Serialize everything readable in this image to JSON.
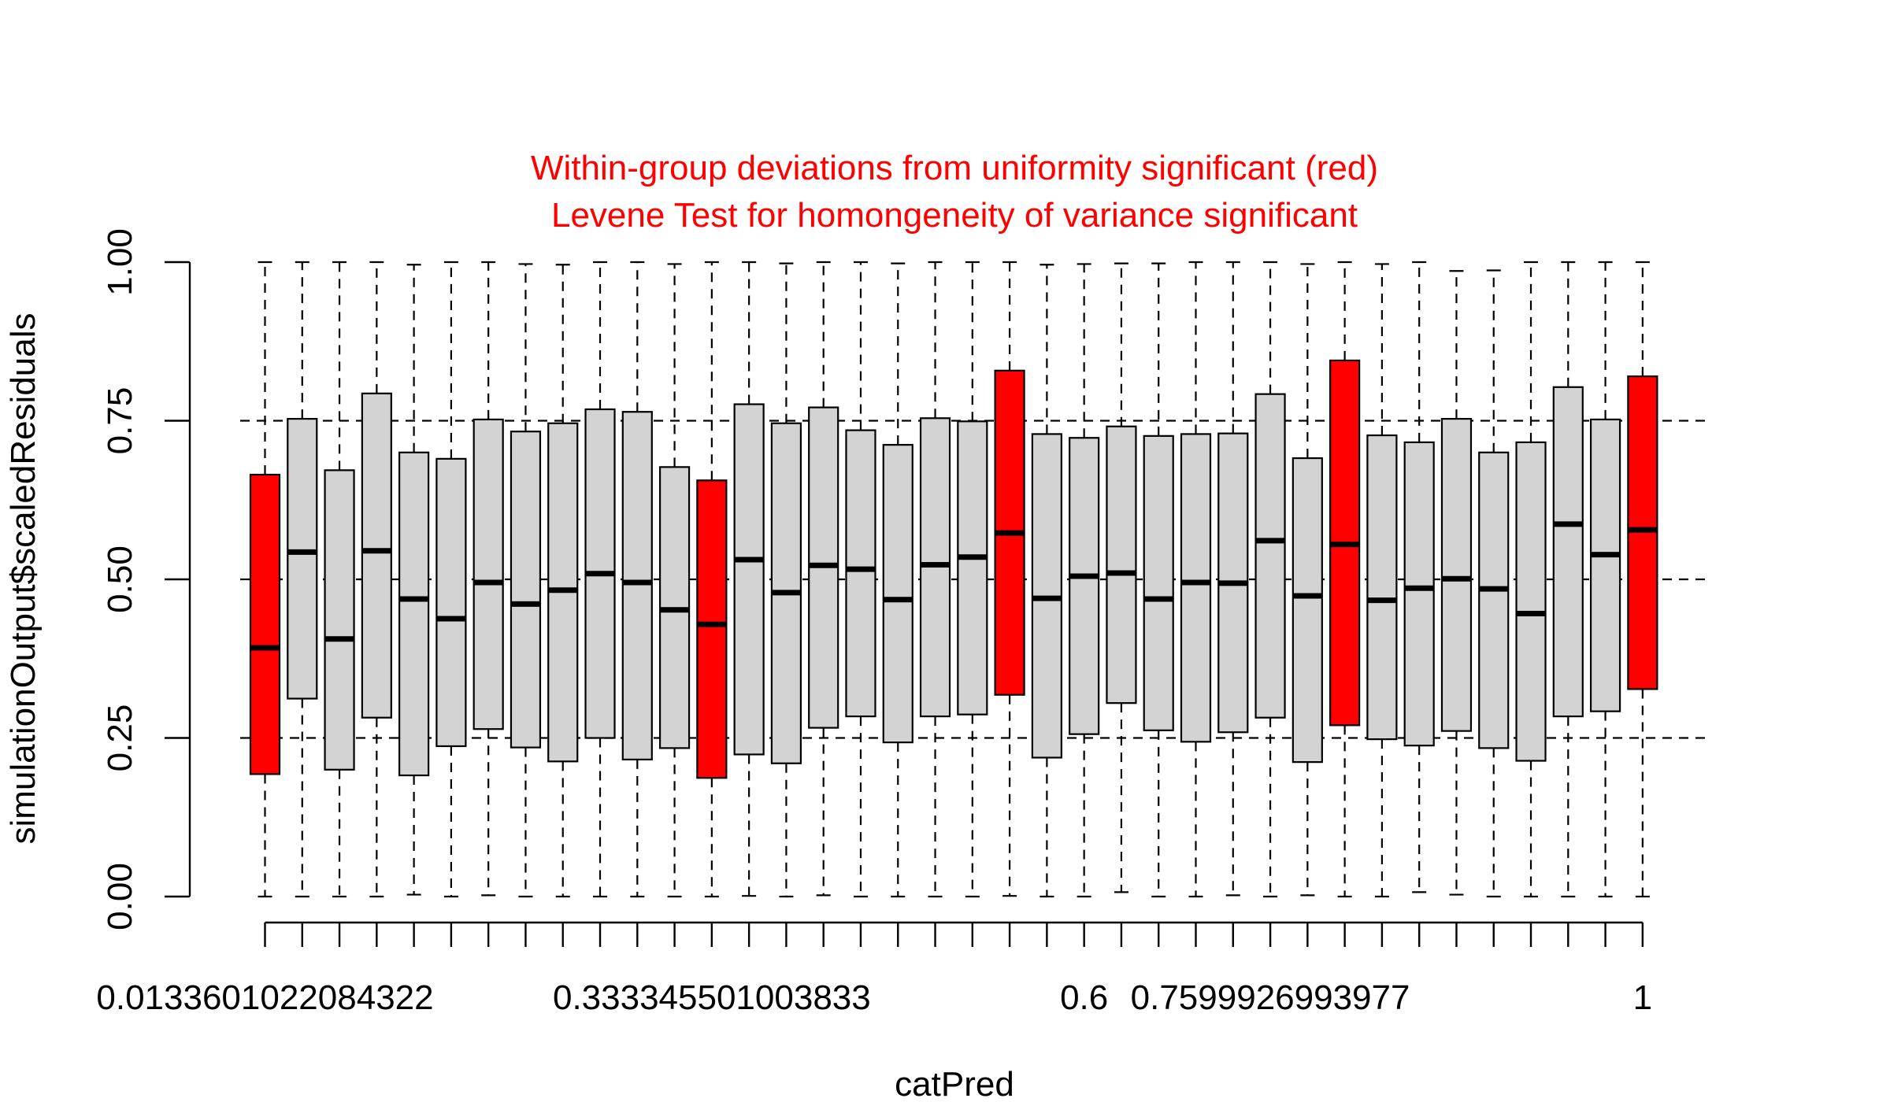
{
  "chart_data": {
    "type": "boxplot",
    "title": "Within-group deviations from uniformity significant (red)",
    "subtitle": "Levene Test for homongeneity of variance significant",
    "xlabel": "catPred",
    "ylabel": "simulationOutput$scaledResiduals",
    "ylim": [
      0,
      1
    ],
    "y_ticks": [
      "0.00",
      "0.25",
      "0.50",
      "0.75",
      "1.00"
    ],
    "x_tick_labels": [
      {
        "group": 1,
        "label": "0.0133601022084322"
      },
      {
        "group": 13,
        "label": "0.333345501003833"
      },
      {
        "group": 23,
        "label": "0.6"
      },
      {
        "group": 28,
        "label": "0.7599926993977"
      },
      {
        "group": 38,
        "label": "1"
      }
    ],
    "reference_lines": [
      0.25,
      0.5,
      0.75
    ],
    "colors": {
      "normal": "#d3d3d3",
      "significant": "#ff0000",
      "title": "#ff0000"
    },
    "groups": [
      {
        "q1": 0.193,
        "median": 0.392,
        "q3": 0.665,
        "min": 0.0,
        "max": 1.0,
        "significant": true
      },
      {
        "q1": 0.312,
        "median": 0.543,
        "q3": 0.753,
        "min": 0.0,
        "max": 1.0,
        "significant": false
      },
      {
        "q1": 0.2,
        "median": 0.406,
        "q3": 0.672,
        "min": 0.0,
        "max": 1.0,
        "significant": false
      },
      {
        "q1": 0.282,
        "median": 0.545,
        "q3": 0.793,
        "min": 0.0,
        "max": 1.0,
        "significant": false
      },
      {
        "q1": 0.191,
        "median": 0.469,
        "q3": 0.7,
        "min": 0.003,
        "max": 0.996,
        "significant": false
      },
      {
        "q1": 0.237,
        "median": 0.438,
        "q3": 0.69,
        "min": 0.0,
        "max": 1.0,
        "significant": false
      },
      {
        "q1": 0.264,
        "median": 0.495,
        "q3": 0.752,
        "min": 0.002,
        "max": 1.0,
        "significant": false
      },
      {
        "q1": 0.235,
        "median": 0.461,
        "q3": 0.733,
        "min": 0.0,
        "max": 0.997,
        "significant": false
      },
      {
        "q1": 0.213,
        "median": 0.483,
        "q3": 0.746,
        "min": 0.0,
        "max": 0.996,
        "significant": false
      },
      {
        "q1": 0.25,
        "median": 0.509,
        "q3": 0.768,
        "min": 0.0,
        "max": 1.0,
        "significant": false
      },
      {
        "q1": 0.216,
        "median": 0.495,
        "q3": 0.764,
        "min": 0.0,
        "max": 1.0,
        "significant": false
      },
      {
        "q1": 0.234,
        "median": 0.452,
        "q3": 0.677,
        "min": 0.0,
        "max": 0.997,
        "significant": false
      },
      {
        "q1": 0.187,
        "median": 0.429,
        "q3": 0.656,
        "min": 0.0,
        "max": 1.0,
        "significant": true
      },
      {
        "q1": 0.224,
        "median": 0.531,
        "q3": 0.776,
        "min": 0.001,
        "max": 1.0,
        "significant": false
      },
      {
        "q1": 0.21,
        "median": 0.479,
        "q3": 0.746,
        "min": 0.0,
        "max": 0.998,
        "significant": false
      },
      {
        "q1": 0.266,
        "median": 0.522,
        "q3": 0.771,
        "min": 0.002,
        "max": 1.0,
        "significant": false
      },
      {
        "q1": 0.284,
        "median": 0.516,
        "q3": 0.735,
        "min": 0.0,
        "max": 1.0,
        "significant": false
      },
      {
        "q1": 0.243,
        "median": 0.468,
        "q3": 0.712,
        "min": 0.0,
        "max": 0.998,
        "significant": false
      },
      {
        "q1": 0.284,
        "median": 0.523,
        "q3": 0.754,
        "min": 0.0,
        "max": 1.0,
        "significant": false
      },
      {
        "q1": 0.287,
        "median": 0.535,
        "q3": 0.749,
        "min": 0.0,
        "max": 1.0,
        "significant": false
      },
      {
        "q1": 0.318,
        "median": 0.573,
        "q3": 0.829,
        "min": 0.001,
        "max": 1.0,
        "significant": true
      },
      {
        "q1": 0.219,
        "median": 0.47,
        "q3": 0.729,
        "min": 0.0,
        "max": 0.996,
        "significant": false
      },
      {
        "q1": 0.256,
        "median": 0.505,
        "q3": 0.723,
        "min": 0.0,
        "max": 0.997,
        "significant": false
      },
      {
        "q1": 0.305,
        "median": 0.51,
        "q3": 0.741,
        "min": 0.007,
        "max": 0.998,
        "significant": false
      },
      {
        "q1": 0.262,
        "median": 0.469,
        "q3": 0.726,
        "min": 0.0,
        "max": 0.998,
        "significant": false
      },
      {
        "q1": 0.244,
        "median": 0.495,
        "q3": 0.729,
        "min": 0.0,
        "max": 1.0,
        "significant": false
      },
      {
        "q1": 0.259,
        "median": 0.494,
        "q3": 0.73,
        "min": 0.002,
        "max": 1.0,
        "significant": false
      },
      {
        "q1": 0.282,
        "median": 0.561,
        "q3": 0.792,
        "min": 0.0,
        "max": 1.0,
        "significant": false
      },
      {
        "q1": 0.212,
        "median": 0.474,
        "q3": 0.691,
        "min": 0.002,
        "max": 0.997,
        "significant": false
      },
      {
        "q1": 0.27,
        "median": 0.555,
        "q3": 0.845,
        "min": 0.0,
        "max": 1.0,
        "significant": true
      },
      {
        "q1": 0.248,
        "median": 0.467,
        "q3": 0.727,
        "min": 0.0,
        "max": 0.997,
        "significant": false
      },
      {
        "q1": 0.238,
        "median": 0.486,
        "q3": 0.716,
        "min": 0.007,
        "max": 1.0,
        "significant": false
      },
      {
        "q1": 0.261,
        "median": 0.501,
        "q3": 0.753,
        "min": 0.003,
        "max": 0.986,
        "significant": false
      },
      {
        "q1": 0.234,
        "median": 0.485,
        "q3": 0.7,
        "min": 0.0,
        "max": 0.987,
        "significant": false
      },
      {
        "q1": 0.214,
        "median": 0.446,
        "q3": 0.716,
        "min": 0.0,
        "max": 1.0,
        "significant": false
      },
      {
        "q1": 0.284,
        "median": 0.587,
        "q3": 0.803,
        "min": 0.0,
        "max": 1.0,
        "significant": false
      },
      {
        "q1": 0.292,
        "median": 0.539,
        "q3": 0.752,
        "min": 0.0,
        "max": 1.0,
        "significant": false
      },
      {
        "q1": 0.327,
        "median": 0.578,
        "q3": 0.82,
        "min": 0.0,
        "max": 1.0,
        "significant": true
      }
    ]
  }
}
